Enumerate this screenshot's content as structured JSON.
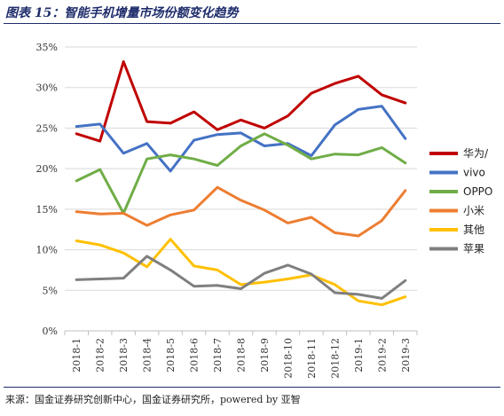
{
  "figure_title": "图表 15：智能手机增量市场份额变化趋势",
  "source": "来源：国金证券研究创新中心，国金证券研究所，powered by 亚智",
  "chart_data": {
    "type": "line",
    "title": "",
    "xlabel": "",
    "ylabel": "",
    "ylim": [
      0,
      35
    ],
    "yticks": [
      "0%",
      "5%",
      "10%",
      "15%",
      "20%",
      "25%",
      "30%",
      "35%"
    ],
    "grid": true,
    "legend_position": "right",
    "categories": [
      "2018-1",
      "2018-2",
      "2018-3",
      "2018-4",
      "2018-5",
      "2018-6",
      "2018-7",
      "2018-8",
      "2018-9",
      "2018-10",
      "2018-11",
      "2018-12",
      "2019-1",
      "2019-2",
      "2019-3"
    ],
    "series": [
      {
        "name": "华为/",
        "color": "#c00000",
        "values": [
          24.3,
          23.4,
          33.2,
          25.8,
          25.6,
          27.0,
          24.8,
          26.0,
          25.0,
          26.5,
          29.3,
          30.5,
          31.4,
          29.1,
          28.1
        ]
      },
      {
        "name": "vivo",
        "color": "#4472c4",
        "values": [
          25.2,
          25.5,
          21.9,
          23.1,
          19.7,
          23.5,
          24.2,
          24.4,
          22.8,
          23.1,
          21.6,
          25.4,
          27.3,
          27.7,
          23.7
        ]
      },
      {
        "name": "OPPO",
        "color": "#70ad47",
        "values": [
          18.5,
          19.9,
          14.5,
          21.2,
          21.7,
          21.2,
          20.4,
          22.8,
          24.3,
          22.9,
          21.2,
          21.8,
          21.7,
          22.6,
          20.7
        ]
      },
      {
        "name": "小米",
        "color": "#ed7d31",
        "values": [
          14.7,
          14.4,
          14.5,
          13.0,
          14.3,
          14.9,
          17.7,
          16.1,
          14.9,
          13.3,
          14.0,
          12.1,
          11.7,
          13.6,
          17.3
        ]
      },
      {
        "name": "其他",
        "color": "#ffc000",
        "values": [
          11.1,
          10.6,
          9.6,
          7.9,
          11.3,
          8.0,
          7.5,
          5.7,
          6.0,
          6.4,
          6.9,
          5.7,
          3.7,
          3.2,
          4.2
        ]
      },
      {
        "name": "苹果",
        "color": "#7f7f7f",
        "values": [
          6.3,
          6.4,
          6.5,
          9.2,
          7.5,
          5.5,
          5.6,
          5.2,
          7.1,
          8.1,
          7.0,
          4.7,
          4.5,
          4.0,
          6.2
        ]
      }
    ]
  }
}
